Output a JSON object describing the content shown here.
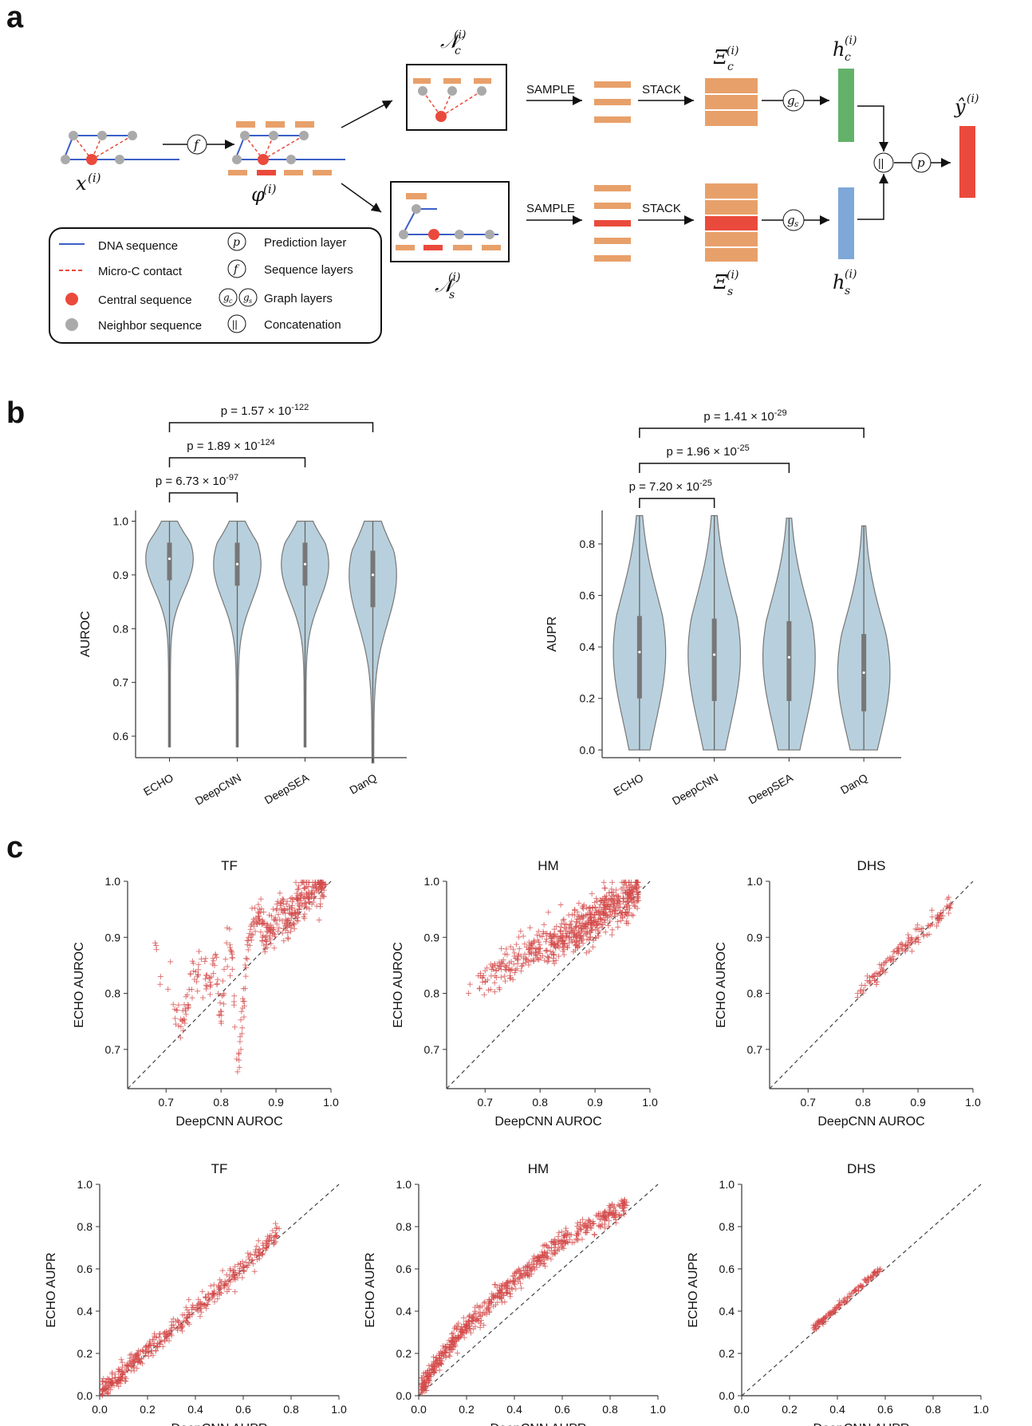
{
  "panels": {
    "a": "a",
    "b": "b",
    "c": "c"
  },
  "diagram": {
    "x_label": "x",
    "x_sup": "(i)",
    "phi_label": "φ",
    "phi_sup": "(i)",
    "f": "f",
    "N": "𝒩",
    "sub_c": "c",
    "sub_s": "s",
    "sup_i": "(i)",
    "sample": "SAMPLE",
    "stack": "STACK",
    "Xi": "Ξ",
    "gc": "g",
    "gs": "g",
    "h": "h",
    "y_hat": "ŷ",
    "p": "p",
    "concat": "||",
    "colors": {
      "orange": "#e8a06a",
      "red": "#ea4a3c",
      "green": "#64b26a",
      "blue": "#7ea8d8",
      "dna": "#3b5fc8",
      "gray": "#aaaaaa"
    }
  },
  "legend": {
    "dna": "DNA sequence",
    "contact": "Micro-C contact",
    "central": "Central sequence",
    "neighbor": "Neighbor sequence",
    "p_layer": "Prediction layer",
    "f_layer": "Sequence layers",
    "g_layer": "Graph layers",
    "concat": "Concatenation"
  },
  "panel_b": {
    "left": {
      "ylabel": "AUROC",
      "yticks": [
        "0.6",
        "0.7",
        "0.8",
        "0.9",
        "1.0"
      ],
      "categories": [
        "ECHO",
        "DeepCNN",
        "DeepSEA",
        "DanQ"
      ],
      "pvalues": [
        {
          "base": "p = 6.73 × 10",
          "exp": "-97"
        },
        {
          "base": "p = 1.89 × 10",
          "exp": "-124"
        },
        {
          "base": "p = 1.57 × 10",
          "exp": "-122"
        }
      ]
    },
    "right": {
      "ylabel": "AUPR",
      "yticks": [
        "0.0",
        "0.2",
        "0.4",
        "0.6",
        "0.8"
      ],
      "categories": [
        "ECHO",
        "DeepCNN",
        "DeepSEA",
        "DanQ"
      ],
      "pvalues": [
        {
          "base": "p = 7.20 × 10",
          "exp": "-25"
        },
        {
          "base": "p = 1.96 × 10",
          "exp": "-25"
        },
        {
          "base": "p = 1.41 × 10",
          "exp": "-29"
        }
      ]
    }
  },
  "panel_c": {
    "titles": [
      "TF",
      "HM",
      "DHS"
    ],
    "auroc_xlabel": "DeepCNN AUROC",
    "auroc_ylabel": "ECHO AUROC",
    "aupr_xlabel": "DeepCNN AUPR",
    "aupr_ylabel": "ECHO AUPR",
    "auroc_ticks": [
      "0.7",
      "0.8",
      "0.9",
      "1.0"
    ],
    "aupr_ticks": [
      "0.0",
      "0.2",
      "0.4",
      "0.6",
      "0.8",
      "1.0"
    ]
  },
  "chart_data": [
    {
      "type": "violin",
      "title": "",
      "xlabel": "",
      "ylabel": "AUROC",
      "ylim": [
        0.56,
        1.02
      ],
      "categories": [
        "ECHO",
        "DeepCNN",
        "DeepSEA",
        "DanQ"
      ],
      "min": [
        0.58,
        0.58,
        0.58,
        0.55
      ],
      "q1": [
        0.89,
        0.88,
        0.88,
        0.84
      ],
      "median": [
        0.93,
        0.92,
        0.92,
        0.9
      ],
      "q3": [
        0.96,
        0.96,
        0.96,
        0.945
      ],
      "max": [
        1.0,
        1.0,
        1.0,
        1.0
      ],
      "color": "#b8d0dd"
    },
    {
      "type": "violin",
      "title": "",
      "xlabel": "",
      "ylabel": "AUPR",
      "ylim": [
        -0.03,
        0.93
      ],
      "categories": [
        "ECHO",
        "DeepCNN",
        "DeepSEA",
        "DanQ"
      ],
      "min": [
        0.0,
        0.0,
        0.0,
        0.0
      ],
      "q1": [
        0.2,
        0.19,
        0.19,
        0.15
      ],
      "median": [
        0.38,
        0.37,
        0.36,
        0.3
      ],
      "q3": [
        0.52,
        0.51,
        0.5,
        0.45
      ],
      "max": [
        0.91,
        0.91,
        0.9,
        0.87
      ],
      "color": "#b8d0dd"
    },
    {
      "type": "scatter",
      "title": "TF",
      "xlabel": "DeepCNN AUROC",
      "ylabel": "ECHO AUROC",
      "xlim": [
        0.63,
        1.0
      ],
      "ylim": [
        0.63,
        1.0
      ],
      "points_x": [
        0.68,
        0.69,
        0.72,
        0.73,
        0.74,
        0.75,
        0.78,
        0.79,
        0.8,
        0.81,
        0.82,
        0.83,
        0.85,
        0.86,
        0.87,
        0.88,
        0.9,
        0.91,
        0.92,
        0.93,
        0.94,
        0.95,
        0.96,
        0.97,
        0.98,
        0.99
      ],
      "points_y": [
        0.89,
        0.83,
        0.77,
        0.75,
        0.78,
        0.84,
        0.82,
        0.87,
        0.75,
        0.89,
        0.87,
        0.66,
        0.9,
        0.92,
        0.95,
        0.9,
        0.93,
        0.95,
        0.93,
        0.94,
        0.96,
        0.97,
        0.97,
        0.98,
        0.99,
        0.995
      ],
      "color": "#d44a4a"
    },
    {
      "type": "scatter",
      "title": "HM",
      "xlabel": "DeepCNN AUROC",
      "ylabel": "ECHO AUROC",
      "xlim": [
        0.63,
        1.0
      ],
      "ylim": [
        0.63,
        1.0
      ],
      "points_x": [
        0.67,
        0.7,
        0.72,
        0.74,
        0.76,
        0.78,
        0.8,
        0.82,
        0.84,
        0.86,
        0.88,
        0.9,
        0.92,
        0.94,
        0.96,
        0.98
      ],
      "points_y": [
        0.8,
        0.82,
        0.84,
        0.85,
        0.86,
        0.87,
        0.88,
        0.89,
        0.9,
        0.91,
        0.92,
        0.93,
        0.95,
        0.96,
        0.97,
        0.99
      ],
      "color": "#d44a4a"
    },
    {
      "type": "scatter",
      "title": "DHS",
      "xlabel": "DeepCNN AUROC",
      "ylabel": "ECHO AUROC",
      "xlim": [
        0.63,
        1.0
      ],
      "ylim": [
        0.63,
        1.0
      ],
      "points_x": [
        0.79,
        0.82,
        0.87,
        0.9,
        0.92,
        0.94,
        0.96
      ],
      "points_y": [
        0.8,
        0.83,
        0.88,
        0.9,
        0.92,
        0.94,
        0.96
      ],
      "color": "#d44a4a"
    },
    {
      "type": "scatter",
      "title": "TF",
      "xlabel": "DeepCNN AUPR",
      "ylabel": "ECHO AUPR",
      "xlim": [
        0.0,
        1.0
      ],
      "ylim": [
        0.0,
        1.0
      ],
      "points_x": [
        0.01,
        0.05,
        0.1,
        0.2,
        0.3,
        0.4,
        0.5,
        0.6,
        0.7,
        0.75
      ],
      "points_y": [
        0.02,
        0.06,
        0.11,
        0.22,
        0.31,
        0.41,
        0.51,
        0.61,
        0.71,
        0.79
      ],
      "color": "#d44a4a"
    },
    {
      "type": "scatter",
      "title": "HM",
      "xlabel": "DeepCNN AUPR",
      "ylabel": "ECHO AUPR",
      "xlim": [
        0.0,
        1.0
      ],
      "ylim": [
        0.0,
        1.0
      ],
      "points_x": [
        0.01,
        0.05,
        0.1,
        0.2,
        0.3,
        0.4,
        0.5,
        0.6,
        0.7,
        0.8,
        0.87
      ],
      "points_y": [
        0.03,
        0.1,
        0.2,
        0.33,
        0.44,
        0.54,
        0.64,
        0.73,
        0.8,
        0.86,
        0.9
      ],
      "color": "#d44a4a"
    },
    {
      "type": "scatter",
      "title": "DHS",
      "xlabel": "DeepCNN AUPR",
      "ylabel": "ECHO AUPR",
      "xlim": [
        0.0,
        1.0
      ],
      "ylim": [
        0.0,
        1.0
      ],
      "points_x": [
        0.3,
        0.35,
        0.4,
        0.45,
        0.5,
        0.55,
        0.58
      ],
      "points_y": [
        0.32,
        0.37,
        0.42,
        0.47,
        0.52,
        0.57,
        0.6
      ],
      "color": "#d44a4a"
    }
  ]
}
